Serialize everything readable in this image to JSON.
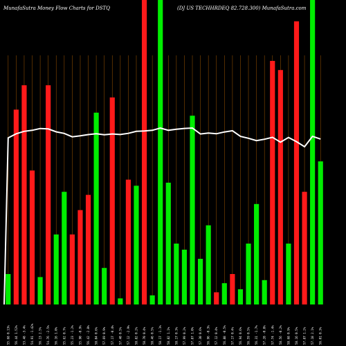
{
  "header": {
    "left": "MunafaSutra  Money Flow  Charts for DSTQ",
    "right": "(DJ US TECHHRDEQ 82.728.300) MunafaSutra.com"
  },
  "colors": {
    "background": "#000000",
    "gridline": "#8a4b00",
    "up": "#00ee00",
    "down": "#ff1a1a",
    "price_line": "#ffffff",
    "label": "#ffffff"
  },
  "chart_data": {
    "type": "bar",
    "title": "MunafaSutra  Money Flow  Charts for DSTQ",
    "subtitle": "(DJ US TECHHRDEQ 82.728.300) MunafaSutra.com",
    "ylim": [
      0,
      100
    ],
    "grid": true,
    "categories": [
      "2024-08-07 (0.13%)",
      "2024-08-06 (1.52%)",
      "2024-08-05 (-3.4%)",
      "2024-08-02 (-1.42%)",
      "2024-08-01 (2.5%)",
      "2024-07-31 (-2.5%)",
      "2024-07-30 (1.0%)",
      "2024-07-29 (0.7%)",
      "2024-07-26 (-1.2%)",
      "2024-07-25 (-0.9%)",
      "2024-07-24 (-2.8%)",
      "2024-07-23 (0.6%)",
      "2024-07-22 (0.9%)",
      "2024-07-19 (-0.4%)",
      "2024-07-18 (0.5%)",
      "2024-07-17 (-2.9%)",
      "2024-07-16 (0.2%)",
      "2024-07-15 (0.4%)",
      "2024-07-12 (0.5%)",
      "2024-07-11 (-1.1%)",
      "2024-07-10 (1.1%)",
      "2024-07-09 (0.3%)",
      "2024-07-08 (0.2%)",
      "2024-07-05 (1.0%)",
      "2024-07-03 (0.6%)",
      "2024-07-02 (-0.3%)",
      "2024-07-01 (0.4%)",
      "2024-06-28 (-0.5%)",
      "2024-06-27 (0.4%)",
      "2024-06-26 (0.6%)",
      "2024-06-25 (0.5%)",
      "2024-06-24 (-1.7%)",
      "2024-06-21 (-0.8%)",
      "2024-06-20 (-1.4%)",
      "2024-06-18 (-0.2%)",
      "2024-06-17 (0.9%)",
      "2024-06-14 (0.5%)",
      "2024-06-13 (1.2%)",
      "2024-06-12 (2.1%)",
      "2024-06-11 (0.3%)"
    ],
    "tick_labels": [
      "55.68 0.13%",
      "56.44 1.52%",
      "53.48 -3.4%",
      "54.91 -1.42%",
      "56.13 2.5%",
      "54.76 -2.5%",
      "56.16 1.0%",
      "55.62 0.7%",
      "55.23 -1.2%",
      "55.90 -0.9%",
      "56.42 -2.8%",
      "58.04 0.6%",
      "57.69 0.9%",
      "57.17 -0.4%",
      "57.40 0.5%",
      "57.12 -2.9%",
      "58.82 0.2%",
      "58.70 0.4%",
      "58.46 0.5%",
      "58.17 -1.1%",
      "58.82 1.1%",
      "58.17 0.3%",
      "57.99 0.2%",
      "57.87 1.0%",
      "57.30 0.6%",
      "56.96 -0.3%",
      "57.12 0.4%",
      "56.88 -0.5%",
      "57.17 0.4%",
      "56.94 0.6%",
      "56.59 0.5%",
      "56.31 -1.7%",
      "57.28 -0.8%",
      "57.74 -1.4%",
      "58.56 -0.2%",
      "58.68 0.9%",
      "58.16 0.5%",
      "57.87 1.2%",
      "57.18 2.1%",
      "56.01 0.3%"
    ],
    "series": [
      {
        "values": [
          10,
          64,
          72,
          44,
          9,
          72,
          23,
          37,
          23,
          31,
          36,
          63,
          12,
          68,
          2,
          41,
          39,
          100,
          3,
          100,
          40,
          20,
          18,
          62,
          15,
          26,
          4,
          7,
          10,
          5,
          20,
          33,
          8,
          80,
          77,
          20,
          93,
          37,
          100,
          47
        ],
        "direction": [
          "up",
          "down",
          "down",
          "down",
          "up",
          "down",
          "up",
          "up",
          "down",
          "down",
          "down",
          "up",
          "up",
          "down",
          "up",
          "down",
          "up",
          "down",
          "up",
          "up",
          "up",
          "up",
          "up",
          "up",
          "up",
          "up",
          "down",
          "up",
          "down",
          "up",
          "up",
          "up",
          "up",
          "down",
          "down",
          "up",
          "down",
          "down",
          "up",
          "up"
        ]
      },
      {
        "type": "line",
        "values": [
          55.68,
          56.44,
          53.48,
          54.91,
          56.13,
          54.76,
          56.16,
          55.62,
          55.23,
          55.9,
          56.42,
          58.04,
          57.69,
          57.17,
          57.4,
          57.12,
          58.82,
          58.7,
          58.46,
          58.17,
          58.82,
          58.17,
          57.99,
          57.87,
          57.3,
          56.96,
          57.12,
          56.88,
          57.17,
          56.94,
          56.59,
          56.31,
          57.28,
          57.74,
          58.56,
          58.68,
          58.16,
          57.87,
          57.18,
          56.01
        ]
      }
    ]
  }
}
